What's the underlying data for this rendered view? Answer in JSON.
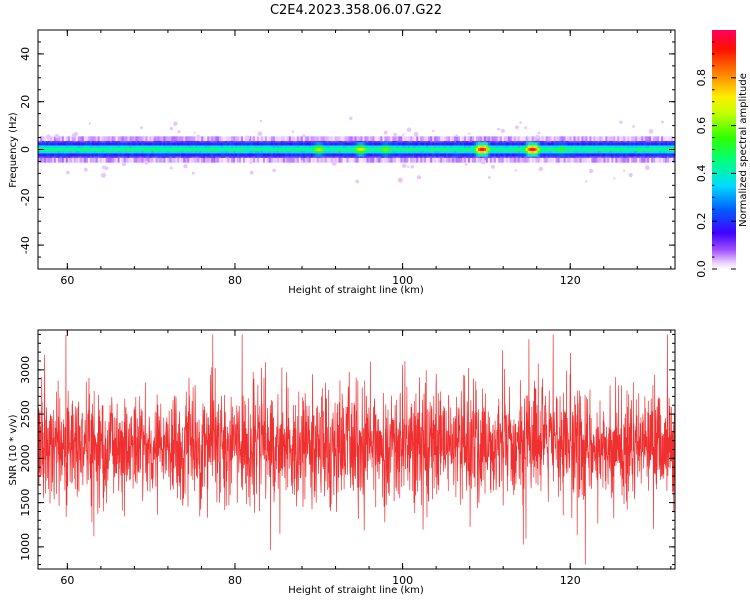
{
  "title": "C2E4.2023.358.06.07.G22",
  "chart_data": [
    {
      "type": "heatmap",
      "xlabel": "Height of straight line (km)",
      "ylabel": "Frequency (Hz)",
      "xlim": [
        56.5,
        132.5
      ],
      "ylim": [
        -50,
        50
      ],
      "xticks": [
        "60",
        "80",
        "100",
        "120"
      ],
      "yticks": [
        "-40",
        "-20",
        "0",
        "20",
        "40"
      ],
      "colorbar": {
        "label": "Normalized spectral amplitude",
        "ticks": [
          "0.0",
          "0.2",
          "0.4",
          "0.6",
          "0.8"
        ],
        "range": [
          0,
          1
        ],
        "colormap": "gist_rainbow_r"
      },
      "band": {
        "center_frequency_hz": 0,
        "half_width_hz": 3,
        "outer_halo_hz": 5,
        "hotspots": [
          {
            "height_km": 90,
            "amplitude": 0.65
          },
          {
            "height_km": 95,
            "amplitude": 0.7
          },
          {
            "height_km": 98,
            "amplitude": 0.6
          },
          {
            "height_km": 109.5,
            "amplitude": 0.95
          },
          {
            "height_km": 115.5,
            "amplitude": 0.95
          },
          {
            "height_km": 119,
            "amplitude": 0.55
          }
        ]
      }
    },
    {
      "type": "line",
      "xlabel": "Height of straight line (km)",
      "ylabel": "SNR (10 * v/v)",
      "xlim": [
        56.5,
        132.5
      ],
      "ylim": [
        750,
        3450
      ],
      "xticks": [
        "60",
        "80",
        "100",
        "120"
      ],
      "yticks": [
        "1000",
        "1500",
        "2000",
        "2500",
        "3000"
      ],
      "series": [
        {
          "color": "#f03030",
          "x_range": [
            56.5,
            132.5
          ],
          "points": 2600,
          "mean": 2150,
          "typical_min": 1300,
          "typical_max": 3000,
          "extreme_max": 3400,
          "extreme_min": 800
        }
      ]
    }
  ]
}
